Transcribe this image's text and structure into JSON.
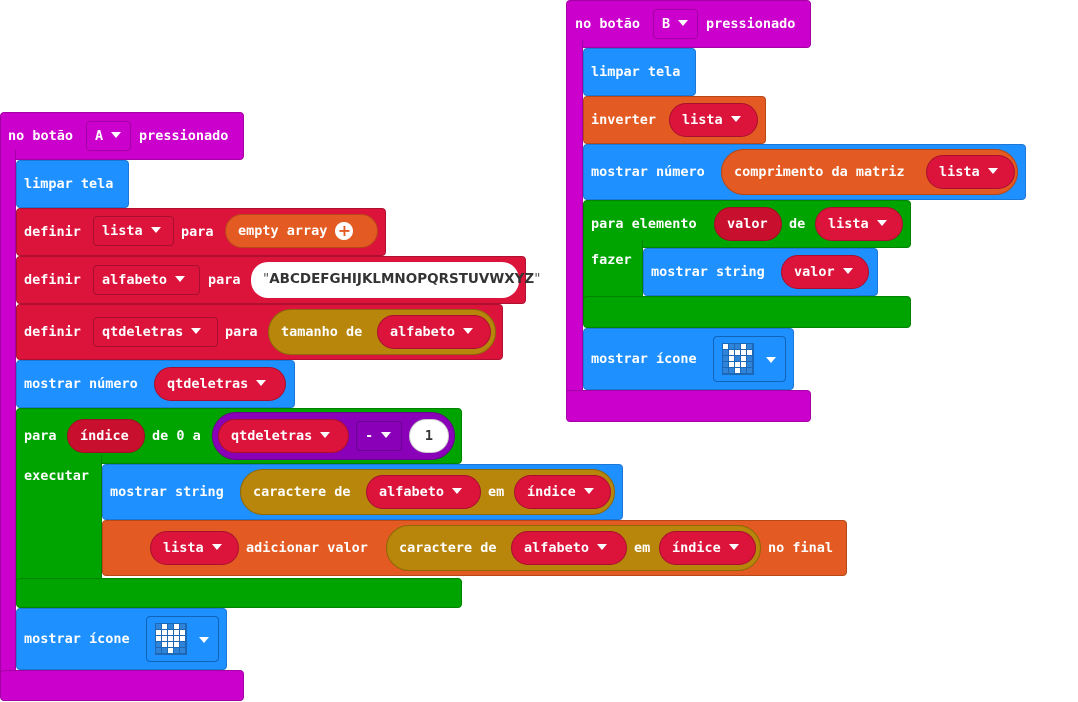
{
  "left": {
    "hat": {
      "prefix": "no botão",
      "button": "A",
      "suffix": "pressionado"
    },
    "clear": "limpar tela",
    "set_list": {
      "kw": "definir",
      "var": "lista",
      "to": "para",
      "value": "empty array"
    },
    "set_alpha": {
      "kw": "definir",
      "var": "alfabeto",
      "to": "para",
      "value": "ABCDEFGHIJKLMNOPQRSTUVWXYZ"
    },
    "set_qtd": {
      "kw": "definir",
      "var": "qtdeletras",
      "to": "para",
      "fn": "tamanho de",
      "arg": "alfabeto"
    },
    "show_number": {
      "kw": "mostrar número",
      "var": "qtdeletras"
    },
    "for": {
      "kw": "para",
      "var": "índice",
      "from": "de 0 a",
      "limit_var": "qtdeletras",
      "op": "-",
      "num": "1",
      "do": "executar"
    },
    "show_string": {
      "kw": "mostrar string",
      "fn": "caractere de",
      "arg": "alfabeto",
      "at": "em",
      "idx": "índice"
    },
    "add_value": {
      "var": "lista",
      "kw": "adicionar valor",
      "fn": "caractere de",
      "arg": "alfabeto",
      "at": "em",
      "idx": "índice",
      "end": "no final"
    },
    "show_icon": {
      "kw": "mostrar ícone"
    }
  },
  "right": {
    "hat": {
      "prefix": "no botão",
      "button": "B",
      "suffix": "pressionado"
    },
    "clear": "limpar tela",
    "reverse": {
      "kw": "inverter",
      "var": "lista"
    },
    "show_number": {
      "kw": "mostrar número",
      "fn": "comprimento da matriz",
      "var": "lista"
    },
    "foreach": {
      "kw": "para elemento",
      "var": "valor",
      "of": "de",
      "list": "lista",
      "do": "fazer"
    },
    "show_string": {
      "kw": "mostrar string",
      "var": "valor"
    },
    "show_icon": {
      "kw": "mostrar ícone"
    }
  },
  "icons": {
    "heart": "heart-icon",
    "pattern": "pattern-icon"
  },
  "colors": {
    "hat": "#cc00cc",
    "basic": "#1e90ff",
    "variables": "#dc143c",
    "arrays": "#e35b22",
    "loops": "#00a400",
    "text": "#b8860b",
    "math": "#8a00b8"
  }
}
